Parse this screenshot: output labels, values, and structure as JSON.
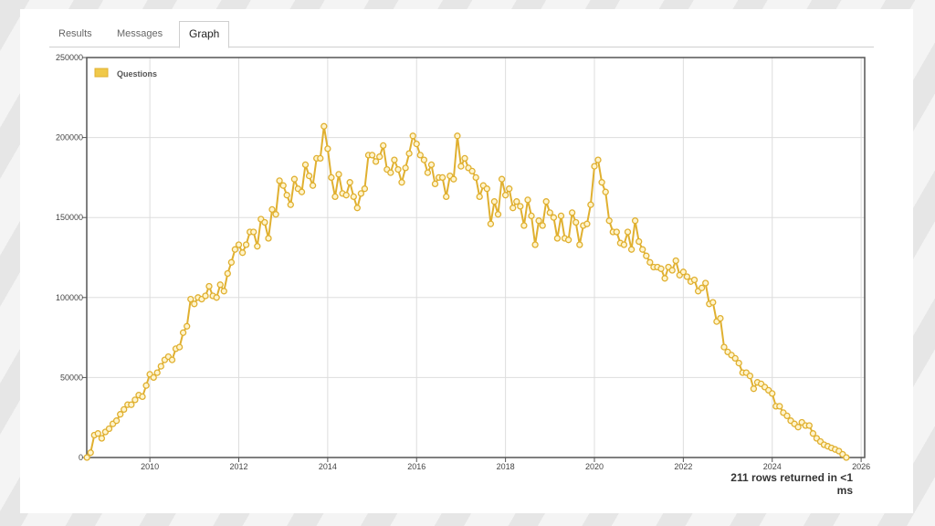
{
  "tabs": [
    {
      "label": "Results",
      "active": false
    },
    {
      "label": "Messages",
      "active": false
    },
    {
      "label": "Graph",
      "active": true
    }
  ],
  "status": {
    "text": "211 rows returned in <1 ms"
  },
  "colors": {
    "series": "#f0c94a",
    "series_dark": "#e0b030",
    "axis": "#555555",
    "grid": "#dddddd"
  },
  "chart_data": {
    "type": "line",
    "title": "",
    "xlabel": "",
    "ylabel": "",
    "xlim": [
      2008.58,
      2026.08
    ],
    "ylim": [
      0,
      250000
    ],
    "x_ticks": [
      "2010",
      "2012",
      "2014",
      "2016",
      "2018",
      "2020",
      "2022",
      "2024",
      "2026"
    ],
    "y_ticks": [
      "0",
      "50000",
      "100000",
      "150000",
      "200000",
      "250000"
    ],
    "grid": true,
    "legend_position": "top-left",
    "x_start": "2008-08",
    "x_step": "1 month",
    "series": [
      {
        "name": "Questions",
        "values": [
          0,
          3000,
          14000,
          15000,
          12000,
          16000,
          18000,
          21000,
          23000,
          27000,
          30000,
          33000,
          33000,
          36000,
          39000,
          38000,
          45000,
          52000,
          50000,
          53000,
          57000,
          61000,
          63000,
          61000,
          68000,
          69000,
          78000,
          82000,
          99000,
          96000,
          100000,
          99000,
          101000,
          107000,
          101000,
          100000,
          108000,
          104000,
          115000,
          122000,
          130000,
          133000,
          128000,
          133000,
          141000,
          141000,
          132000,
          149000,
          147000,
          137000,
          155000,
          152000,
          173000,
          170000,
          164000,
          158000,
          174000,
          168000,
          166000,
          183000,
          176000,
          170000,
          187000,
          187000,
          207000,
          193000,
          175000,
          163000,
          177000,
          165000,
          164000,
          172000,
          163000,
          156000,
          165000,
          168000,
          189000,
          189000,
          185000,
          188000,
          195000,
          180000,
          178000,
          186000,
          180000,
          172000,
          181000,
          190000,
          201000,
          196000,
          189000,
          186000,
          178000,
          183000,
          171000,
          175000,
          175000,
          163000,
          176000,
          174000,
          201000,
          182000,
          187000,
          181000,
          179000,
          175000,
          163000,
          170000,
          168000,
          146000,
          160000,
          152000,
          174000,
          164000,
          168000,
          156000,
          160000,
          157000,
          145000,
          161000,
          151000,
          133000,
          148000,
          145000,
          160000,
          153000,
          150000,
          137000,
          151000,
          137000,
          136000,
          153000,
          147000,
          133000,
          145000,
          146000,
          158000,
          182000,
          186000,
          172000,
          166000,
          148000,
          141000,
          141000,
          134000,
          133000,
          141000,
          130000,
          148000,
          135000,
          130000,
          126000,
          122000,
          119000,
          119000,
          118000,
          112000,
          119000,
          117000,
          123000,
          114000,
          116000,
          113000,
          110000,
          111000,
          104000,
          106000,
          109000,
          96000,
          97000,
          85000,
          87000,
          69000,
          66000,
          64000,
          62000,
          59000,
          53000,
          53000,
          51000,
          43000,
          47000,
          46000,
          44000,
          42000,
          40000,
          32000,
          32000,
          28000,
          26000,
          23000,
          21000,
          19000,
          22000,
          20000,
          20000,
          15000,
          12000,
          10000,
          8000,
          7000,
          6000,
          5000,
          4000,
          2000,
          0
        ]
      }
    ]
  }
}
